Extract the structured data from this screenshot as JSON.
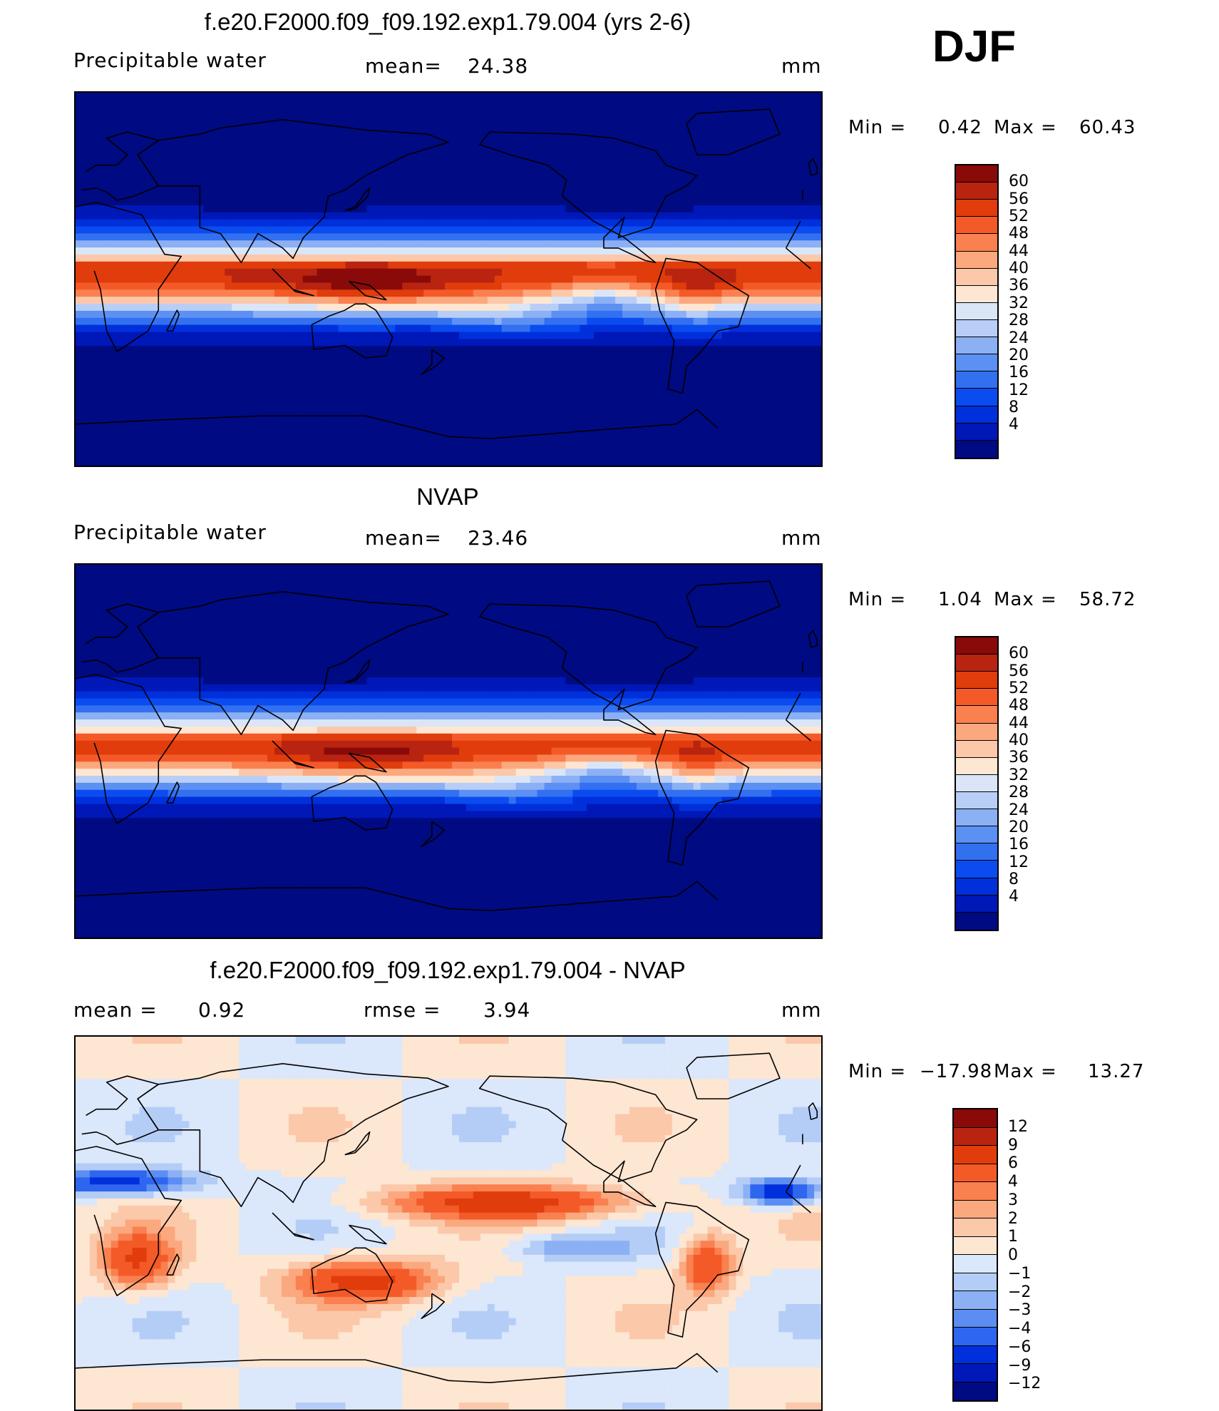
{
  "season": "DJF",
  "colors": {
    "abs_scale": [
      "#000a82",
      "#0018b8",
      "#0030dc",
      "#0a4cf0",
      "#3270f0",
      "#5c90f2",
      "#8cb0f4",
      "#b8cef6",
      "#dae6f8",
      "#fde6d2",
      "#fcc8aa",
      "#fba87e",
      "#fa8050",
      "#f45a28",
      "#e03c0c",
      "#b82410",
      "#8a0a0a"
    ],
    "diff_scale": [
      "#000a82",
      "#0018b8",
      "#0030dc",
      "#2e66f0",
      "#5c8ef2",
      "#8cb0f4",
      "#b4cdf6",
      "#dbe7fa",
      "#fde6d2",
      "#fcc8aa",
      "#fba87e",
      "#fa8050",
      "#f45a28",
      "#e03c0c",
      "#b82410",
      "#8a0a0a"
    ]
  },
  "panels": [
    {
      "title": "f.e20.F2000.f09_f09.192.exp1.79.004 (yrs 2-6)",
      "variable": "Precipitable  water",
      "stat1_label": "mean=",
      "stat1_value": "24.38",
      "stat2_label": "",
      "stat2_value": "",
      "units": "mm",
      "min_label": "Min  =",
      "min_value": "0.42",
      "max_label": "Max  =",
      "max_value": "60.43",
      "legend_ticks": [
        "60",
        "56",
        "52",
        "48",
        "44",
        "40",
        "36",
        "32",
        "28",
        "24",
        "20",
        "16",
        "12",
        "8",
        "4"
      ]
    },
    {
      "title": "NVAP",
      "variable": "Precipitable  water",
      "stat1_label": "mean=",
      "stat1_value": "23.46",
      "stat2_label": "",
      "stat2_value": "",
      "units": "mm",
      "min_label": "Min  =",
      "min_value": "1.04",
      "max_label": "Max  =",
      "max_value": "58.72",
      "legend_ticks": [
        "60",
        "56",
        "52",
        "48",
        "44",
        "40",
        "36",
        "32",
        "28",
        "24",
        "20",
        "16",
        "12",
        "8",
        "4"
      ]
    },
    {
      "title": "f.e20.F2000.f09_f09.192.exp1.79.004 - NVAP",
      "variable": "",
      "stat1_label": "mean  =",
      "stat1_value": "0.92",
      "stat2_label": "rmse  =",
      "stat2_value": "3.94",
      "units": "mm",
      "min_label": "Min  =",
      "min_value": "−17.98",
      "max_label": "Max  =",
      "max_value": "13.27",
      "legend_ticks": [
        "12",
        "9",
        "6",
        "4",
        "3",
        "2",
        "1",
        "0",
        "−1",
        "−2",
        "−3",
        "−4",
        "−6",
        "−9",
        "−12"
      ]
    }
  ]
}
